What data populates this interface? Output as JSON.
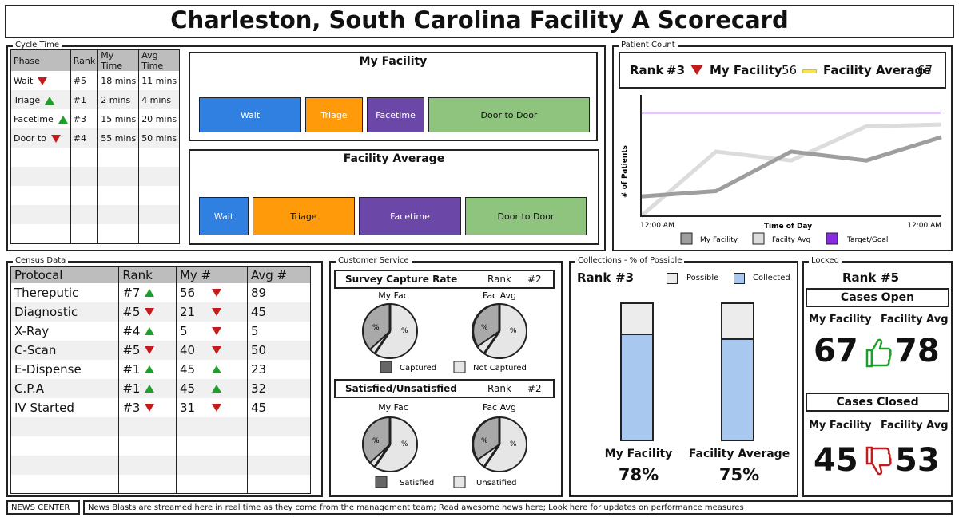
{
  "title": "Charleston, South Carolina Facility A Scorecard",
  "cycle_time": {
    "label": "Cycle Time",
    "headers": [
      "Phase",
      "Rank",
      "My Time",
      "Avg Time"
    ],
    "rows": [
      {
        "phase": "Wait",
        "trend": "down",
        "rank": "#5",
        "my": "18 mins",
        "avg": "11 mins"
      },
      {
        "phase": "Triage",
        "trend": "up",
        "rank": "#1",
        "my": "2 mins",
        "avg": "4 mins"
      },
      {
        "phase": "Facetime",
        "trend": "up",
        "rank": "#3",
        "my": "15 mins",
        "avg": "20 mins"
      },
      {
        "phase": "Door to",
        "trend": "down",
        "rank": "#4",
        "my": "55 mins",
        "avg": "50 mins"
      }
    ],
    "my_facility": {
      "title": "My Facility",
      "segments": [
        "Wait",
        "Triage",
        "Facetime",
        "Door to Door"
      ]
    },
    "facility_average": {
      "title": "Facility Average",
      "segments": [
        "Wait",
        "Triage",
        "Facetime",
        "Door to Door"
      ]
    }
  },
  "patient_count": {
    "label": "Patient Count",
    "rank_label": "Rank",
    "rank": "#3",
    "my_facility_label": "My Facility",
    "my_facility_value": "56",
    "avg_label": "Facility Average",
    "avg_value": "67",
    "y_label": "# of Patients",
    "x_label": "Time of Day",
    "x_start": "12:00 AM",
    "x_end": "12:00 AM",
    "legend": [
      "My Facility",
      "Facilty Avg",
      "Target/Goal"
    ],
    "colors": {
      "my": "#9e9e9e",
      "avg": "#dcdcdc",
      "target": "#8a2be2"
    }
  },
  "chart_data": {
    "type": "line",
    "x": [
      0,
      1,
      2,
      3,
      4
    ],
    "series": [
      {
        "name": "My Facility",
        "values": [
          22,
          28,
          72,
          62,
          88
        ]
      },
      {
        "name": "Facilty Avg",
        "values": [
          0,
          72,
          62,
          100,
          102
        ]
      },
      {
        "name": "Target/Goal",
        "values": [
          115,
          115,
          115,
          115,
          115
        ]
      }
    ],
    "xlabel": "Time of Day",
    "ylabel": "# of Patients",
    "ylim": [
      0,
      135
    ]
  },
  "census": {
    "label": "Census Data",
    "headers": [
      "Protocal",
      "Rank",
      "My #",
      "Avg #"
    ],
    "rows": [
      {
        "name": "Thereputic",
        "rank": "#7",
        "rank_trend": "up",
        "my": "56",
        "my_trend": "down",
        "avg": "89"
      },
      {
        "name": "Diagnostic",
        "rank": "#5",
        "rank_trend": "down",
        "my": "21",
        "my_trend": "down",
        "avg": "45"
      },
      {
        "name": "X-Ray",
        "rank": "#4",
        "rank_trend": "up",
        "my": "5",
        "my_trend": "down",
        "avg": "5"
      },
      {
        "name": "C-Scan",
        "rank": "#5",
        "rank_trend": "down",
        "my": "40",
        "my_trend": "down",
        "avg": "50"
      },
      {
        "name": "E-Dispense",
        "rank": "#1",
        "rank_trend": "up",
        "my": "45",
        "my_trend": "up",
        "avg": "23"
      },
      {
        "name": "C.P.A",
        "rank": "#1",
        "rank_trend": "up",
        "my": "45",
        "my_trend": "up",
        "avg": "32"
      },
      {
        "name": "IV Started",
        "rank": "#3",
        "rank_trend": "down",
        "my": "31",
        "my_trend": "down",
        "avg": "45"
      }
    ]
  },
  "customer_service": {
    "label": "Customer Service",
    "survey": {
      "title": "Survey Capture Rate",
      "rank_label": "Rank",
      "rank": "#2",
      "my_label": "My Fac",
      "avg_label": "Fac Avg",
      "pct": "%",
      "legend": [
        "Captured",
        "Not Captured"
      ]
    },
    "satisfied": {
      "title": "Satisfied/Unsatisfied",
      "rank_label": "Rank",
      "rank": "#2",
      "my_label": "My Fac",
      "avg_label": "Fac Avg",
      "pct": "%",
      "legend": [
        "Satisfied",
        "Unsatified"
      ]
    }
  },
  "collections": {
    "label": "Collections - % of Possible",
    "rank_label": "Rank",
    "rank": "#3",
    "legend": [
      "Possible",
      "Collected"
    ],
    "my_label": "My Facility",
    "my_value": "78%",
    "avg_label": "Facility Average",
    "avg_value": "75%",
    "my_fraction": 0.78,
    "avg_fraction": 0.75,
    "colors": {
      "possible": "#ececec",
      "collected": "#a9c8f0"
    }
  },
  "locked": {
    "label": "Locked",
    "rank_label": "Rank",
    "rank": "#5",
    "open_title": "Cases Open",
    "open_my_label": "My Facility",
    "open_avg_label": "Facility Avg",
    "open_my": "67",
    "open_avg": "78",
    "closed_title": "Cases Closed",
    "closed_my_label": "My Facility",
    "closed_avg_label": "Facility Avg",
    "closed_my": "45",
    "closed_avg": "53"
  },
  "news": {
    "label": "NEWS CENTER",
    "text": "News Blasts are streamed here in real time as they come from the management team; Read awesome news here; Look here for updates on performance measures"
  },
  "colors": {
    "wait": "#2f80e0",
    "triage": "#ff9a0a",
    "facetime": "#6b47a8",
    "door": "#8fc47f",
    "up": "#1e9e2a",
    "down": "#c41c1c"
  }
}
